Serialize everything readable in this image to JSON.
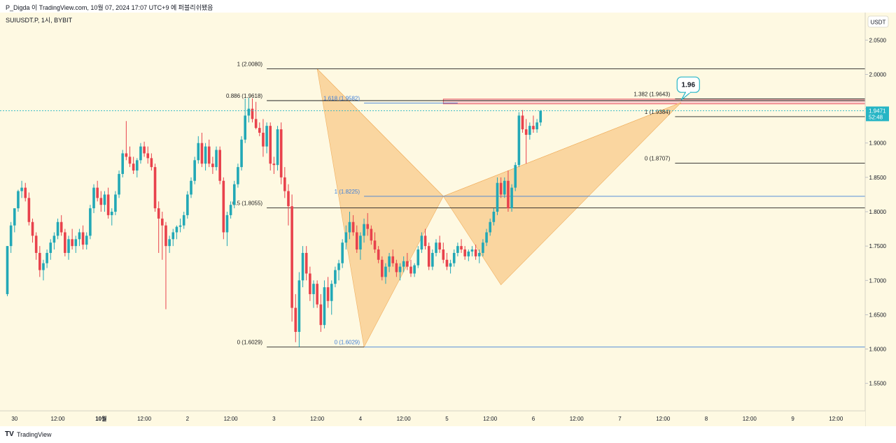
{
  "header": {
    "caption": "P_Digda 이 TradingView.com, 10월 07, 2024 17:07 UTC+9 에 퍼블리쉬됐음"
  },
  "footer": {
    "logo_glyph": "TV",
    "brand": "TradingView"
  },
  "colors": {
    "background": "#fef9e2",
    "up": "#22a8b6",
    "down": "#e8424c",
    "pattern_fill": "#f8c98a",
    "fib_blue": "#3f7fd8",
    "black_line": "#222222",
    "pink_zone": "#f3a9b8",
    "price_tag": "#26b5c5"
  },
  "chart_data": {
    "type": "candlestick",
    "symbol_label": "SUIUSDT.P, 1시, BYBIT",
    "currency_label": "USDT",
    "ylim": [
      1.51,
      2.09
    ],
    "y_ticks": [
      "2.0500",
      "2.0000",
      "1.9500",
      "1.9000",
      "1.8500",
      "1.8000",
      "1.7500",
      "1.7000",
      "1.6500",
      "1.6000",
      "1.5500"
    ],
    "x_ticks": [
      {
        "label": "30",
        "bar": 2
      },
      {
        "label": "12:00",
        "bar": 14
      },
      {
        "label": "10월",
        "bar": 26
      },
      {
        "label": "12:00",
        "bar": 38
      },
      {
        "label": "2",
        "bar": 50
      },
      {
        "label": "12:00",
        "bar": 62
      },
      {
        "label": "3",
        "bar": 74
      },
      {
        "label": "12:00",
        "bar": 86
      },
      {
        "label": "4",
        "bar": 98
      },
      {
        "label": "12:00",
        "bar": 110
      },
      {
        "label": "5",
        "bar": 122
      },
      {
        "label": "12:00",
        "bar": 134
      },
      {
        "label": "6",
        "bar": 146
      },
      {
        "label": "12:00",
        "bar": 158
      },
      {
        "label": "7",
        "bar": 170
      },
      {
        "label": "12:00",
        "bar": 182
      },
      {
        "label": "8",
        "bar": 194
      },
      {
        "label": "12:00",
        "bar": 206
      },
      {
        "label": "9",
        "bar": 218
      },
      {
        "label": "12:00",
        "bar": 230
      }
    ],
    "last_price": "1.9471",
    "countdown": "52:48",
    "candles": [
      [
        1.68,
        1.75,
        1.677,
        1.75
      ],
      [
        1.75,
        1.785,
        1.74,
        1.78
      ],
      [
        1.78,
        1.805,
        1.77,
        1.805
      ],
      [
        1.805,
        1.832,
        1.8,
        1.83
      ],
      [
        1.83,
        1.845,
        1.82,
        1.835
      ],
      [
        1.835,
        1.842,
        1.815,
        1.82
      ],
      [
        1.82,
        1.828,
        1.78,
        1.785
      ],
      [
        1.785,
        1.79,
        1.755,
        1.765
      ],
      [
        1.765,
        1.77,
        1.73,
        1.74
      ],
      [
        1.74,
        1.75,
        1.705,
        1.715
      ],
      [
        1.715,
        1.73,
        1.7,
        1.725
      ],
      [
        1.725,
        1.745,
        1.718,
        1.74
      ],
      [
        1.74,
        1.76,
        1.73,
        1.755
      ],
      [
        1.755,
        1.77,
        1.745,
        1.765
      ],
      [
        1.765,
        1.79,
        1.76,
        1.785
      ],
      [
        1.785,
        1.795,
        1.765,
        1.77
      ],
      [
        1.77,
        1.775,
        1.735,
        1.74
      ],
      [
        1.74,
        1.765,
        1.73,
        1.76
      ],
      [
        1.76,
        1.775,
        1.745,
        1.75
      ],
      [
        1.75,
        1.765,
        1.74,
        1.76
      ],
      [
        1.76,
        1.775,
        1.75,
        1.77
      ],
      [
        1.77,
        1.78,
        1.745,
        1.752
      ],
      [
        1.752,
        1.77,
        1.745,
        1.765
      ],
      [
        1.765,
        1.81,
        1.76,
        1.805
      ],
      [
        1.805,
        1.84,
        1.798,
        1.835
      ],
      [
        1.835,
        1.845,
        1.815,
        1.82
      ],
      [
        1.82,
        1.83,
        1.8,
        1.81
      ],
      [
        1.81,
        1.83,
        1.8,
        1.825
      ],
      [
        1.825,
        1.835,
        1.79,
        1.795
      ],
      [
        1.795,
        1.805,
        1.78,
        1.8
      ],
      [
        1.8,
        1.83,
        1.795,
        1.825
      ],
      [
        1.825,
        1.86,
        1.82,
        1.855
      ],
      [
        1.855,
        1.89,
        1.85,
        1.885
      ],
      [
        1.885,
        1.932,
        1.875,
        1.88
      ],
      [
        1.88,
        1.895,
        1.865,
        1.87
      ],
      [
        1.87,
        1.88,
        1.855,
        1.86
      ],
      [
        1.86,
        1.878,
        1.85,
        1.875
      ],
      [
        1.875,
        1.9,
        1.87,
        1.895
      ],
      [
        1.895,
        1.902,
        1.88,
        1.885
      ],
      [
        1.885,
        1.895,
        1.87,
        1.878
      ],
      [
        1.878,
        1.885,
        1.86,
        1.865
      ],
      [
        1.865,
        1.87,
        1.8,
        1.805
      ],
      [
        1.805,
        1.815,
        1.74,
        1.79
      ],
      [
        1.79,
        1.8,
        1.73,
        1.78
      ],
      [
        1.78,
        1.785,
        1.658,
        1.75
      ],
      [
        1.75,
        1.765,
        1.74,
        1.76
      ],
      [
        1.76,
        1.775,
        1.75,
        1.77
      ],
      [
        1.77,
        1.78,
        1.76,
        1.778
      ],
      [
        1.778,
        1.79,
        1.77,
        1.78
      ],
      [
        1.78,
        1.8,
        1.775,
        1.795
      ],
      [
        1.795,
        1.83,
        1.79,
        1.825
      ],
      [
        1.825,
        1.85,
        1.82,
        1.845
      ],
      [
        1.845,
        1.88,
        1.84,
        1.875
      ],
      [
        1.875,
        1.91,
        1.87,
        1.9
      ],
      [
        1.9,
        1.915,
        1.865,
        1.87
      ],
      [
        1.87,
        1.9,
        1.86,
        1.895
      ],
      [
        1.895,
        1.905,
        1.865,
        1.87
      ],
      [
        1.87,
        1.88,
        1.855,
        1.865
      ],
      [
        1.865,
        1.895,
        1.86,
        1.89
      ],
      [
        1.89,
        1.895,
        1.84,
        1.845
      ],
      [
        1.845,
        1.85,
        1.76,
        1.77
      ],
      [
        1.77,
        1.8,
        1.75,
        1.795
      ],
      [
        1.795,
        1.815,
        1.79,
        1.81
      ],
      [
        1.81,
        1.845,
        1.805,
        1.84
      ],
      [
        1.84,
        1.87,
        1.835,
        1.865
      ],
      [
        1.865,
        1.91,
        1.86,
        1.905
      ],
      [
        1.905,
        1.965,
        1.9,
        1.94
      ],
      [
        1.94,
        1.966,
        1.93,
        1.95
      ],
      [
        1.95,
        1.965,
        1.93,
        1.935
      ],
      [
        1.935,
        1.96,
        1.92,
        1.922
      ],
      [
        1.922,
        1.93,
        1.91,
        1.915
      ],
      [
        1.915,
        1.935,
        1.88,
        1.895
      ],
      [
        1.895,
        1.93,
        1.885,
        1.925
      ],
      [
        1.925,
        1.93,
        1.86,
        1.87
      ],
      [
        1.87,
        1.88,
        1.855,
        1.868
      ],
      [
        1.868,
        1.925,
        1.86,
        1.92
      ],
      [
        1.92,
        1.93,
        1.84,
        1.85
      ],
      [
        1.85,
        1.865,
        1.82,
        1.83
      ],
      [
        1.83,
        1.84,
        1.78,
        1.808
      ],
      [
        1.808,
        1.825,
        1.64,
        1.66
      ],
      [
        1.66,
        1.68,
        1.61,
        1.625
      ],
      [
        1.625,
        1.712,
        1.603,
        1.7
      ],
      [
        1.7,
        1.75,
        1.69,
        1.74
      ],
      [
        1.74,
        1.75,
        1.7,
        1.71
      ],
      [
        1.71,
        1.72,
        1.67,
        1.68
      ],
      [
        1.68,
        1.7,
        1.66,
        1.695
      ],
      [
        1.695,
        1.7,
        1.66,
        1.665
      ],
      [
        1.665,
        1.68,
        1.625,
        1.635
      ],
      [
        1.635,
        1.7,
        1.63,
        1.69
      ],
      [
        1.69,
        1.705,
        1.66,
        1.67
      ],
      [
        1.67,
        1.7,
        1.65,
        1.695
      ],
      [
        1.695,
        1.72,
        1.69,
        1.715
      ],
      [
        1.715,
        1.73,
        1.7,
        1.725
      ],
      [
        1.725,
        1.76,
        1.718,
        1.755
      ],
      [
        1.755,
        1.78,
        1.745,
        1.77
      ],
      [
        1.77,
        1.8,
        1.76,
        1.785
      ],
      [
        1.785,
        1.795,
        1.765,
        1.77
      ],
      [
        1.77,
        1.78,
        1.74,
        1.745
      ],
      [
        1.745,
        1.77,
        1.73,
        1.765
      ],
      [
        1.765,
        1.79,
        1.755,
        1.782
      ],
      [
        1.782,
        1.798,
        1.765,
        1.775
      ],
      [
        1.775,
        1.78,
        1.752,
        1.758
      ],
      [
        1.758,
        1.77,
        1.74,
        1.745
      ],
      [
        1.745,
        1.75,
        1.725,
        1.73
      ],
      [
        1.73,
        1.735,
        1.7,
        1.705
      ],
      [
        1.705,
        1.725,
        1.695,
        1.72
      ],
      [
        1.72,
        1.74,
        1.712,
        1.735
      ],
      [
        1.735,
        1.745,
        1.72,
        1.725
      ],
      [
        1.725,
        1.73,
        1.705,
        1.712
      ],
      [
        1.712,
        1.725,
        1.7,
        1.72
      ],
      [
        1.72,
        1.735,
        1.712,
        1.728
      ],
      [
        1.728,
        1.74,
        1.715,
        1.72
      ],
      [
        1.72,
        1.73,
        1.705,
        1.71
      ],
      [
        1.71,
        1.725,
        1.705,
        1.722
      ],
      [
        1.722,
        1.75,
        1.718,
        1.745
      ],
      [
        1.745,
        1.77,
        1.74,
        1.765
      ],
      [
        1.765,
        1.775,
        1.745,
        1.75
      ],
      [
        1.75,
        1.755,
        1.715,
        1.72
      ],
      [
        1.72,
        1.745,
        1.715,
        1.74
      ],
      [
        1.74,
        1.76,
        1.735,
        1.755
      ],
      [
        1.755,
        1.765,
        1.74,
        1.745
      ],
      [
        1.745,
        1.755,
        1.725,
        1.73
      ],
      [
        1.73,
        1.74,
        1.715,
        1.72
      ],
      [
        1.72,
        1.73,
        1.71,
        1.725
      ],
      [
        1.725,
        1.745,
        1.72,
        1.74
      ],
      [
        1.74,
        1.755,
        1.735,
        1.75
      ],
      [
        1.75,
        1.76,
        1.74,
        1.745
      ],
      [
        1.745,
        1.75,
        1.73,
        1.735
      ],
      [
        1.735,
        1.745,
        1.728,
        1.742
      ],
      [
        1.742,
        1.75,
        1.735,
        1.745
      ],
      [
        1.745,
        1.752,
        1.73,
        1.735
      ],
      [
        1.735,
        1.745,
        1.725,
        1.74
      ],
      [
        1.74,
        1.76,
        1.735,
        1.755
      ],
      [
        1.755,
        1.775,
        1.75,
        1.77
      ],
      [
        1.77,
        1.79,
        1.765,
        1.785
      ],
      [
        1.785,
        1.805,
        1.78,
        1.8
      ],
      [
        1.8,
        1.85,
        1.795,
        1.842
      ],
      [
        1.842,
        1.85,
        1.82,
        1.825
      ],
      [
        1.825,
        1.85,
        1.82,
        1.845
      ],
      [
        1.845,
        1.86,
        1.8,
        1.805
      ],
      [
        1.805,
        1.84,
        1.8,
        1.835
      ],
      [
        1.835,
        1.872,
        1.83,
        1.868
      ],
      [
        1.868,
        1.945,
        1.865,
        1.94
      ],
      [
        1.94,
        1.948,
        1.915,
        1.92
      ],
      [
        1.92,
        1.935,
        1.87,
        1.912
      ],
      [
        1.912,
        1.93,
        1.905,
        1.925
      ],
      [
        1.925,
        1.94,
        1.915,
        1.92
      ],
      [
        1.92,
        1.935,
        1.915,
        1.93
      ],
      [
        1.93,
        1.948,
        1.925,
        1.947
      ]
    ],
    "pattern": {
      "points": [
        {
          "bar": 86,
          "price": 2.008
        },
        {
          "bar": 99,
          "price": 1.6029
        },
        {
          "bar": 121,
          "price": 1.8225
        },
        {
          "bar": 137,
          "price": 1.6935
        },
        {
          "bar": 187,
          "price": 1.959
        }
      ]
    },
    "fib_black": {
      "lines": [
        {
          "label": "1 (2.0080)",
          "price": 2.008,
          "bar_start": 72,
          "bar_end": 246
        },
        {
          "label": "0.886 (1.9618)",
          "price": 1.9618,
          "bar_start": 72,
          "bar_end": 246
        },
        {
          "label": "0.5 (1.8055)",
          "price": 1.8055,
          "bar_start": 72,
          "bar_end": 246
        },
        {
          "label": "0 (1.6029)",
          "price": 1.6029,
          "bar_start": 72,
          "bar_end": 99
        }
      ]
    },
    "fib_blue": {
      "lines": [
        {
          "label": "1.618 (1.9582)",
          "price": 1.9582,
          "bar_start": 99,
          "bar_end": 125
        },
        {
          "label": "1 (1.8225)",
          "price": 1.8225,
          "bar_start": 99,
          "bar_end": 246
        },
        {
          "label": "0 (1.6029)",
          "price": 1.6029,
          "bar_start": 99,
          "bar_end": 246
        }
      ]
    },
    "fib_right": {
      "lines": [
        {
          "label": "1.382 (1.9643)",
          "price": 1.9643,
          "bar_start": 183,
          "bar_end": 246
        },
        {
          "label": "1 (1.9384)",
          "price": 1.9384,
          "bar_start": 183,
          "bar_end": 246
        },
        {
          "label": "0 (1.8707)",
          "price": 1.8707,
          "bar_start": 183,
          "bar_end": 246
        }
      ]
    },
    "prz_zone": {
      "price_high": 1.964,
      "price_low": 1.957,
      "bar_start": 121,
      "bar_end": 246
    },
    "callout": {
      "label": "1.96",
      "bar": 189,
      "price": 1.985
    }
  }
}
